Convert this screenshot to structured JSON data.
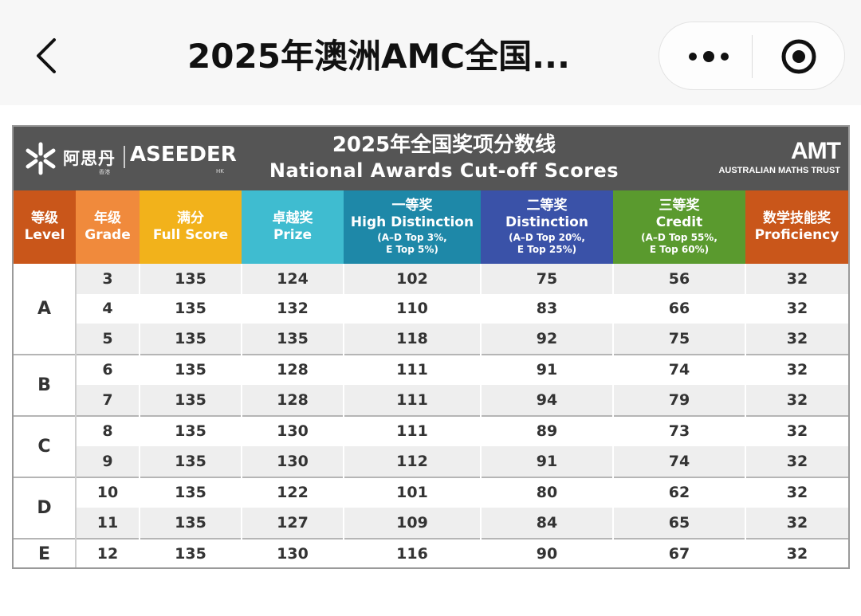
{
  "nav": {
    "title": "2025年澳洲AMC全国...",
    "back_icon": "chevron-left-icon",
    "more_icon": "more-dots-icon",
    "close_icon": "target-close-icon"
  },
  "banner": {
    "brand_cn": "阿思丹",
    "brand_en": "ASEEDER",
    "brand_hk": "香港",
    "brand_hk_en": "HK",
    "title_cn": "2025年全国奖项分数线",
    "title_en": "National Awards Cut-off Scores",
    "partner_logo": "AMT",
    "partner_name": "AUSTRALIAN MATHS TRUST"
  },
  "colors": {
    "banner_bg": "#555555",
    "level_header": "#c9561a",
    "grade_header": "#f08a3c",
    "full_header": "#f2b21b",
    "prize_header": "#3fbcd0",
    "high_header": "#1e88a8",
    "dist_header": "#3a52a8",
    "credit_header": "#5a9a2e",
    "prof_header": "#c9561a"
  },
  "table": {
    "headers": [
      {
        "cn": "等级",
        "en": "Level",
        "sub": ""
      },
      {
        "cn": "年级",
        "en": "Grade",
        "sub": ""
      },
      {
        "cn": "满分",
        "en": "Full Score",
        "sub": ""
      },
      {
        "cn": "卓越奖",
        "en": "Prize",
        "sub": ""
      },
      {
        "cn": "一等奖",
        "en": "High Distinction",
        "sub": "(A–D Top 3%,",
        "sub2": "E Top 5%)"
      },
      {
        "cn": "二等奖",
        "en": "Distinction",
        "sub": "(A–D Top 20%,",
        "sub2": "E Top 25%)"
      },
      {
        "cn": "三等奖",
        "en": "Credit",
        "sub": "(A–D Top 55%,",
        "sub2": "E Top 60%)"
      },
      {
        "cn": "数学技能奖",
        "en": "Proficiency",
        "sub": ""
      }
    ],
    "levels": [
      "A",
      "B",
      "C",
      "D",
      "E"
    ],
    "rows": [
      [
        "3",
        "135",
        "124",
        "102",
        "75",
        "56",
        "32"
      ],
      [
        "4",
        "135",
        "132",
        "110",
        "83",
        "66",
        "32"
      ],
      [
        "5",
        "135",
        "135",
        "118",
        "92",
        "75",
        "32"
      ],
      [
        "6",
        "135",
        "128",
        "111",
        "91",
        "74",
        "32"
      ],
      [
        "7",
        "135",
        "128",
        "111",
        "94",
        "79",
        "32"
      ],
      [
        "8",
        "135",
        "130",
        "111",
        "89",
        "73",
        "32"
      ],
      [
        "9",
        "135",
        "130",
        "112",
        "91",
        "74",
        "32"
      ],
      [
        "10",
        "135",
        "122",
        "101",
        "80",
        "62",
        "32"
      ],
      [
        "11",
        "135",
        "127",
        "109",
        "84",
        "65",
        "32"
      ],
      [
        "12",
        "135",
        "130",
        "116",
        "90",
        "67",
        "32"
      ]
    ]
  }
}
